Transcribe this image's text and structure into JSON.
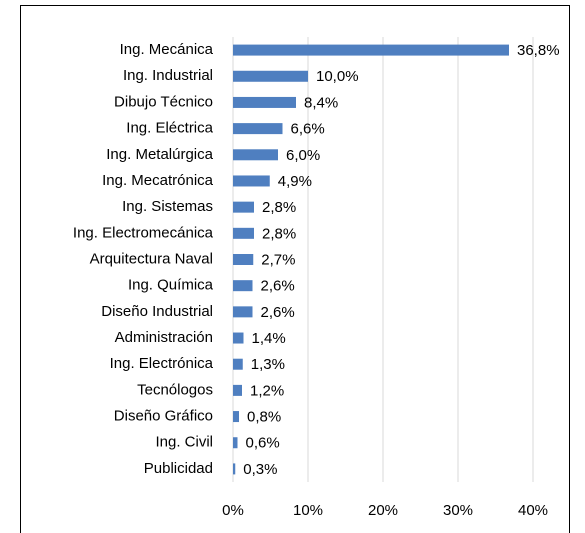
{
  "chart_data": {
    "type": "bar",
    "orientation": "horizontal",
    "categories": [
      "Ing. Mecánica",
      "Ing. Industrial",
      "Dibujo Técnico",
      "Ing. Eléctrica",
      "Ing. Metalúrgica",
      "Ing. Mecatrónica",
      "Ing. Sistemas",
      "Ing. Electromecánica",
      "Arquitectura Naval",
      "Ing. Química",
      "Diseño Industrial",
      "Administración",
      "Ing. Electrónica",
      "Tecnólogos",
      "Diseño Gráfico",
      "Ing. Civil",
      "Publicidad"
    ],
    "values": [
      36.8,
      10.0,
      8.4,
      6.6,
      6.0,
      4.9,
      2.8,
      2.8,
      2.7,
      2.6,
      2.6,
      1.4,
      1.3,
      1.2,
      0.8,
      0.6,
      0.3
    ],
    "value_labels": [
      "36,8%",
      "10,0%",
      "8,4%",
      "6,6%",
      "6,0%",
      "4,9%",
      "2,8%",
      "2,8%",
      "2,7%",
      "2,6%",
      "2,6%",
      "1,4%",
      "1,3%",
      "1,2%",
      "0,8%",
      "0,6%",
      "0,3%"
    ],
    "color": "#4f7fc0",
    "xlim": [
      0,
      40
    ],
    "xticks": [
      {
        "value": 0,
        "label": "0%"
      },
      {
        "value": 10,
        "label": "10%"
      },
      {
        "value": 20,
        "label": "20%"
      },
      {
        "value": 30,
        "label": "30%"
      },
      {
        "value": 40,
        "label": "40%"
      }
    ],
    "grid": true
  }
}
